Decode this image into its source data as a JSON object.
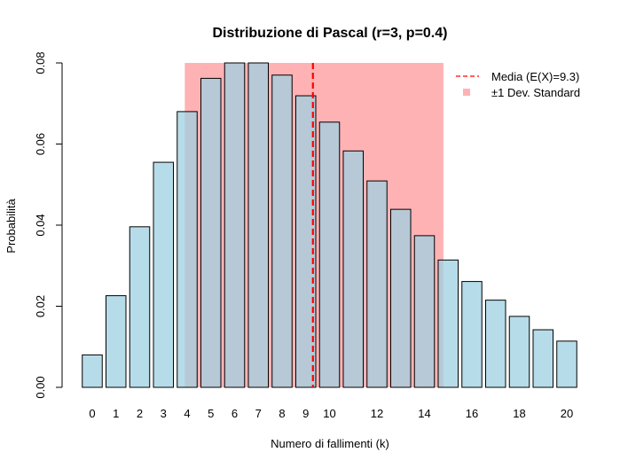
{
  "chart_data": {
    "type": "bar",
    "title": "Distribuzione di Pascal (r=3, p=0.4)",
    "xlabel": "Numero di fallimenti (k)",
    "ylabel": "Probabilità",
    "categories": [
      "0",
      "1",
      "2",
      "3",
      "4",
      "5",
      "6",
      "7",
      "8",
      "9",
      "10",
      "11",
      "12",
      "13",
      "14",
      "15",
      "16",
      "17",
      "18",
      "19",
      "20"
    ],
    "x_tick_labels": [
      "0",
      "1",
      "2",
      "3",
      "4",
      "5",
      "6",
      "7",
      "8",
      "9",
      "10",
      "12",
      "14",
      "16",
      "18",
      "20"
    ],
    "values": [
      0.008,
      0.0226,
      0.0396,
      0.0555,
      0.068,
      0.0762,
      0.08,
      0.08,
      0.077,
      0.0719,
      0.0654,
      0.0583,
      0.0509,
      0.0439,
      0.0374,
      0.0314,
      0.0261,
      0.0215,
      0.0175,
      0.0142,
      0.0114
    ],
    "ylim": [
      0,
      0.08
    ],
    "y_ticks": [
      "0.00",
      "0.02",
      "0.04",
      "0.06",
      "0.08"
    ],
    "bar_color": "#9fd0e2",
    "mean": 9.3,
    "mean_color": "#ff0000",
    "sd_band": {
      "from_k": 3.9,
      "to_k": 14.8,
      "color": "#ff7f82",
      "opacity": 0.6
    },
    "legend": {
      "position": "top-right",
      "entries": [
        "Media (E(X)=9.3)",
        "±1 Dev. Standard"
      ]
    }
  }
}
